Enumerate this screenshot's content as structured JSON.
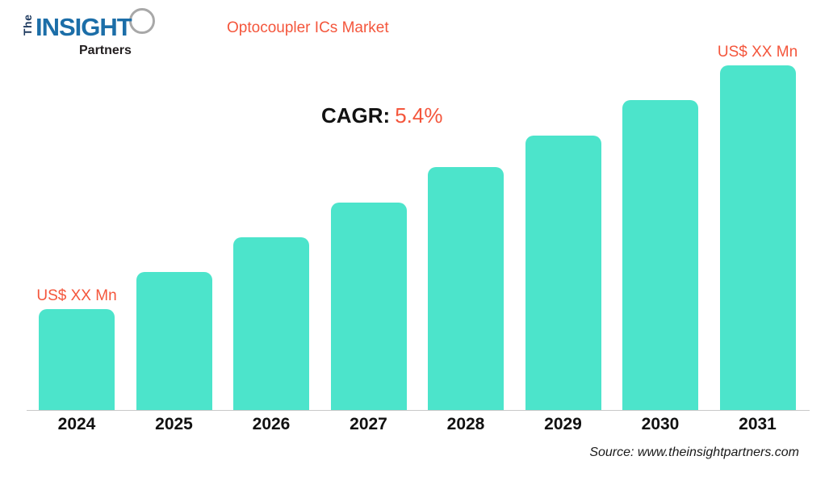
{
  "header": {
    "logo": {
      "the": "The",
      "insight": "INSIGHT",
      "partners": "Partners",
      "blue": "#1c6ea8",
      "dark": "#231f20",
      "icon": "magnifier-circle-icon"
    },
    "title": "Optocoupler ICs Market"
  },
  "cagr": {
    "label": "CAGR:",
    "value": "5.4%"
  },
  "chart_data": {
    "type": "bar",
    "title": "Optocoupler ICs Market",
    "categories": [
      "2024",
      "2025",
      "2026",
      "2027",
      "2028",
      "2029",
      "2030",
      "2031"
    ],
    "values_unit": "US$ Mn",
    "values_masked_as": "XX",
    "relative_heights_pct_of_max": [
      29.3,
      40.0,
      50.1,
      60.2,
      70.5,
      79.6,
      89.9,
      100
    ],
    "annotations": [
      {
        "category": "2024",
        "text": "US$ XX Mn"
      },
      {
        "category": "2031",
        "text": "US$ XX Mn"
      }
    ],
    "cagr": "5.4%",
    "bar_color": "#4ce4cb",
    "axis_color": "#c9c9c9",
    "grid": false,
    "legend": "none",
    "xlabel": "",
    "ylabel": ""
  },
  "footer": {
    "source": "Source: www.theinsightpartners.com"
  },
  "colors": {
    "accent_orange": "#f4563c",
    "bar_teal": "#4ce4cb",
    "logo_blue": "#1c6ea8"
  }
}
